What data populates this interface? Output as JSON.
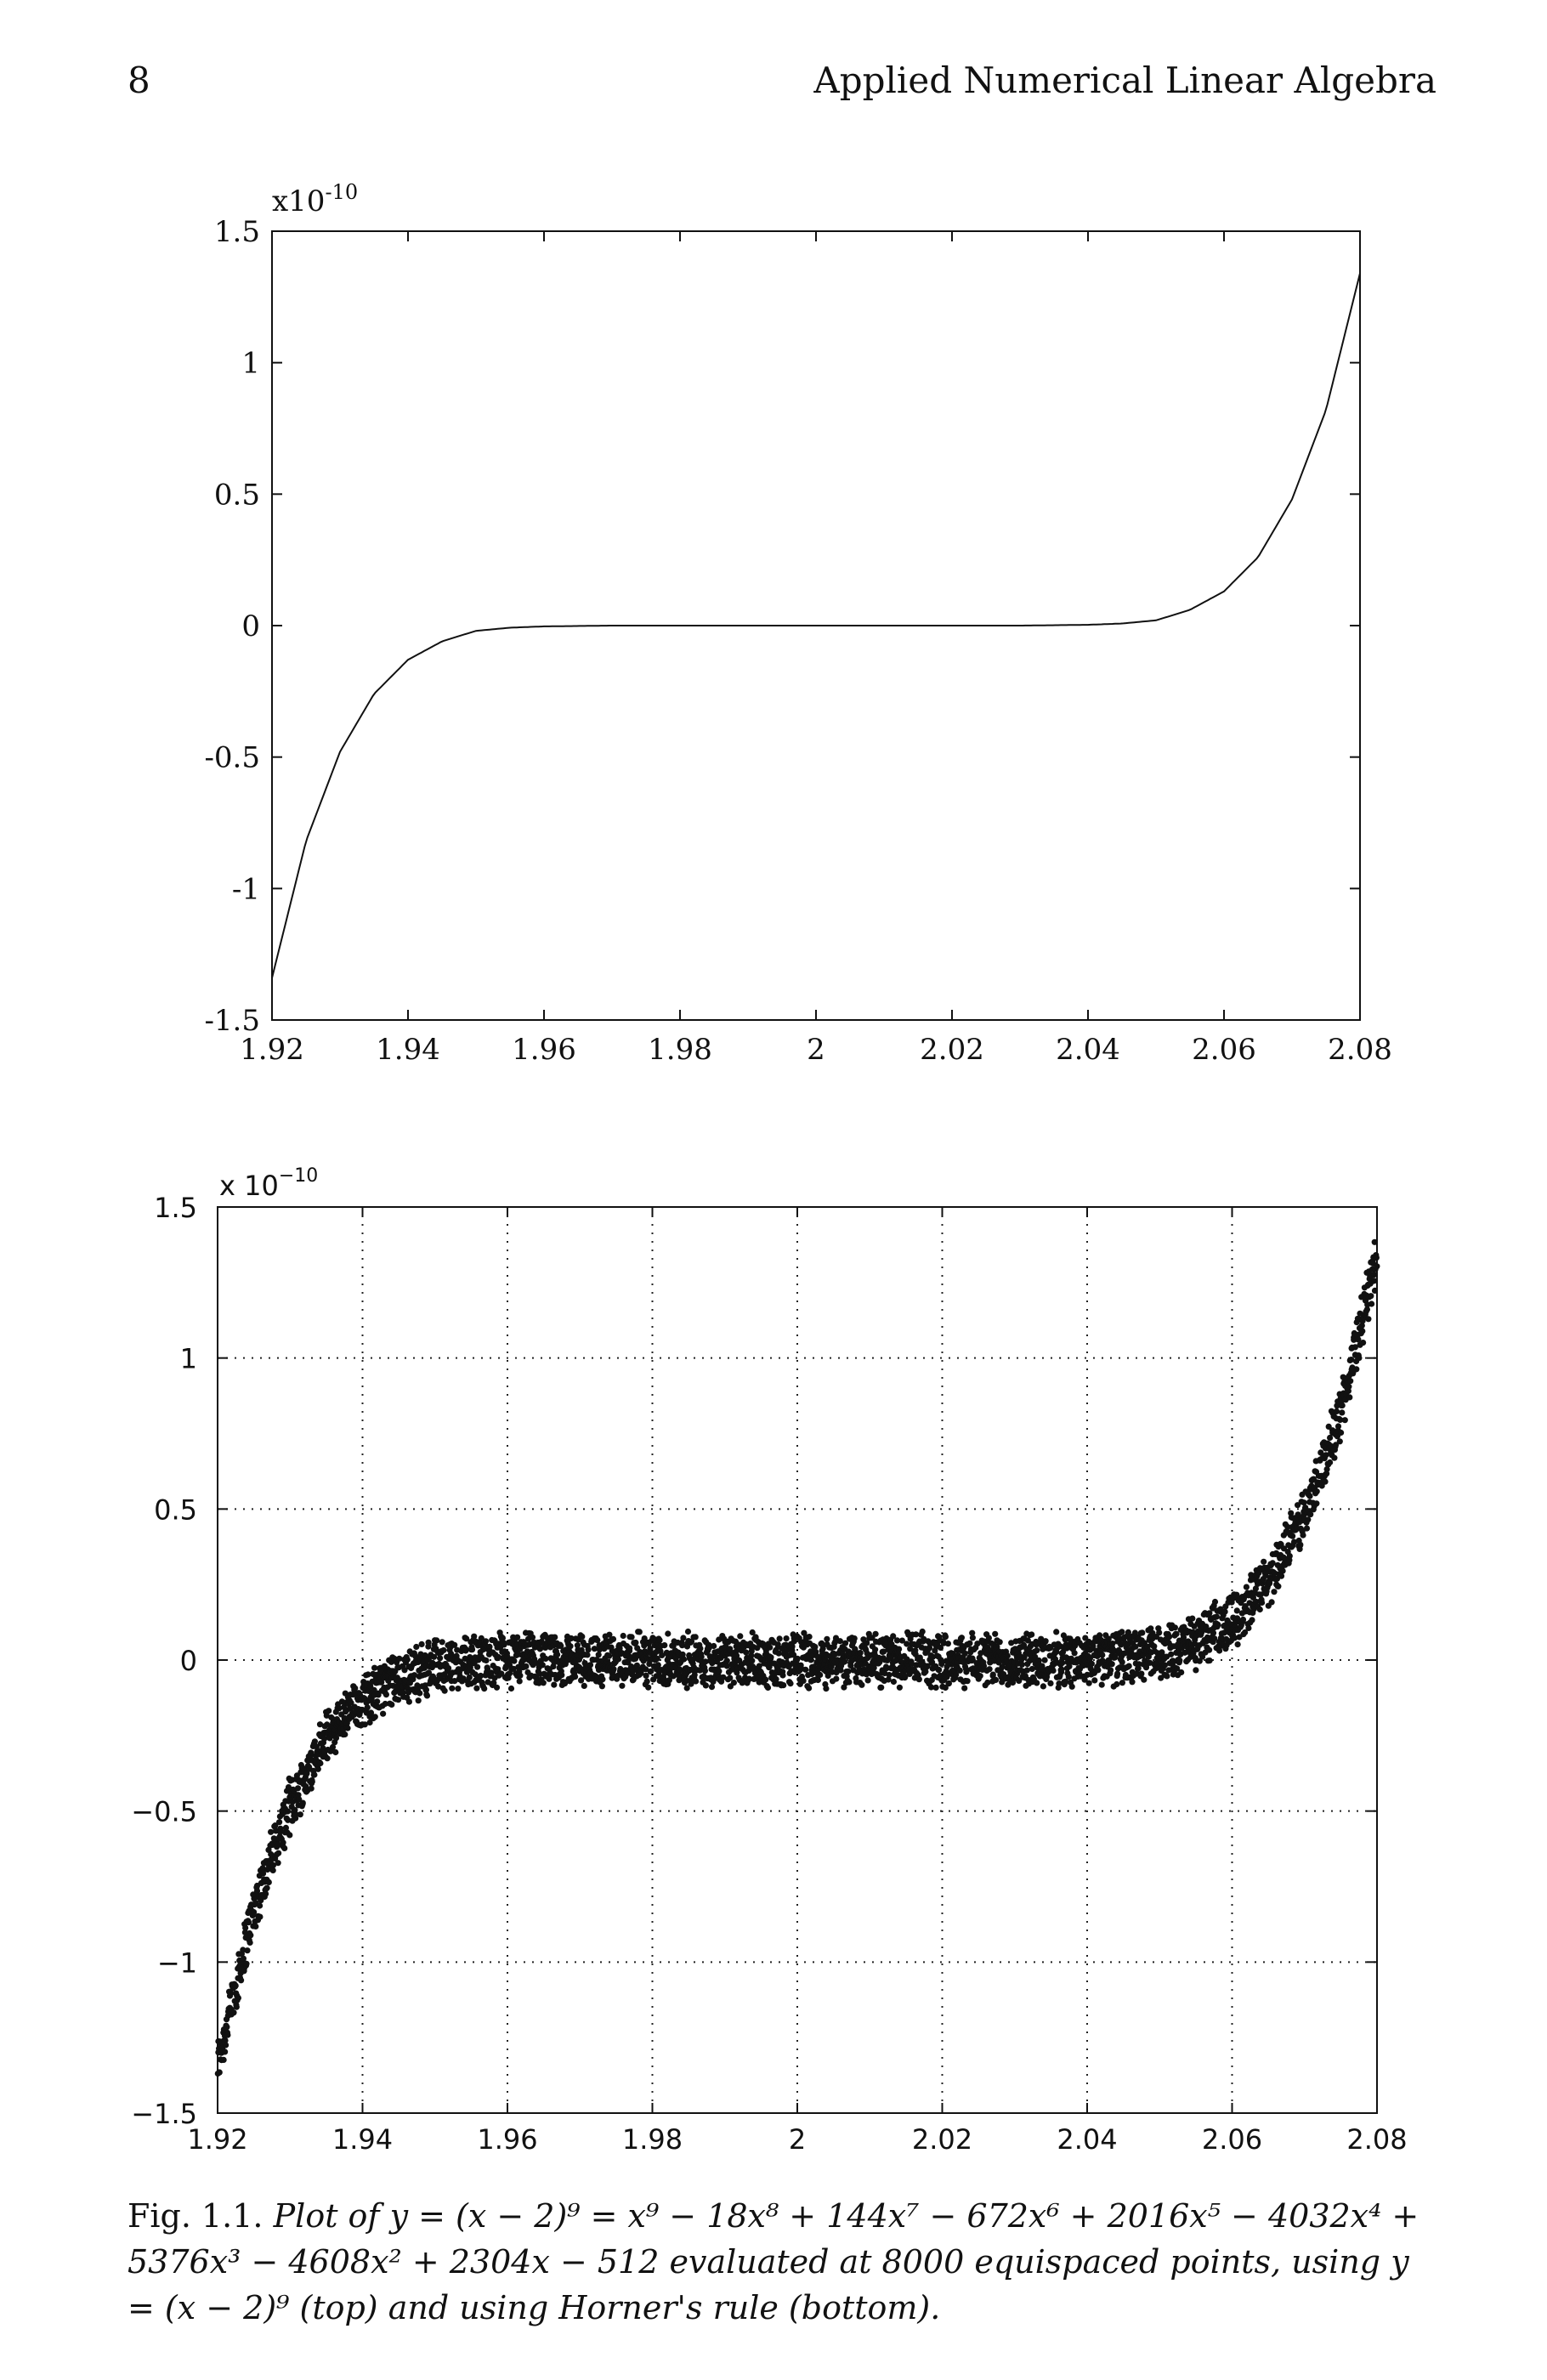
{
  "header": {
    "page_number": "8",
    "running_title": "Applied Numerical Linear Algebra"
  },
  "figure": {
    "caption_label": "Fig. 1.1.",
    "caption_text": "Plot of y = (x − 2)⁹ = x⁹ − 18x⁸ + 144x⁷ − 672x⁶ + 2016x⁵ − 4032x⁴ + 5376x³ − 4608x² + 2304x − 512 evaluated at 8000 equispaced points, using y = (x − 2)⁹ (top) and using Horner's rule (bottom)."
  },
  "chart_data": [
    {
      "type": "line",
      "title": "",
      "xlabel": "",
      "ylabel": "",
      "y_multiplier": "x10",
      "y_exponent": "-10",
      "function": "y = (x - 2)^9",
      "xlim": [
        1.92,
        2.08
      ],
      "ylim": [
        -1.5,
        1.5
      ],
      "xticks": [
        "1.92",
        "1.94",
        "1.96",
        "1.98",
        "2",
        "2.02",
        "2.04",
        "2.06",
        "2.08"
      ],
      "yticks": [
        "1.5",
        "1",
        "0.5",
        "0",
        "-0.5",
        "-1",
        "-1.5"
      ],
      "grid": false,
      "series": [
        {
          "x": [
            1.92,
            1.925,
            1.93,
            1.935,
            1.94,
            1.945,
            1.95,
            1.955,
            1.96,
            1.97,
            1.98,
            1.99,
            2.0,
            2.01,
            2.02,
            2.03,
            2.04,
            2.045,
            2.05,
            2.055,
            2.06,
            2.065,
            2.07,
            2.075,
            2.08
          ],
          "y": [
            -1.34,
            -0.82,
            -0.48,
            -0.26,
            -0.13,
            -0.06,
            -0.02,
            -0.008,
            -0.003,
            0.0,
            0.0,
            0.0,
            0.0,
            0.0,
            0.0,
            0.0,
            0.003,
            0.008,
            0.02,
            0.06,
            0.13,
            0.26,
            0.48,
            0.82,
            1.34
          ]
        }
      ]
    },
    {
      "type": "scatter",
      "title": "",
      "xlabel": "",
      "ylabel": "",
      "y_multiplier": "x 10",
      "y_exponent": "−10",
      "method": "Horner's rule",
      "n_points": 8000,
      "xlim": [
        1.92,
        2.08
      ],
      "ylim": [
        -1.5,
        1.5
      ],
      "xticks": [
        "1.92",
        "1.94",
        "1.96",
        "1.98",
        "2",
        "2.02",
        "2.04",
        "2.06",
        "2.08"
      ],
      "yticks": [
        "1.5",
        "1",
        "0.5",
        "0",
        "−0.5",
        "−1",
        "−1.5"
      ],
      "grid": true,
      "noise_amplitude": 0.1,
      "series": [
        {
          "x": [
            1.92,
            1.925,
            1.93,
            1.935,
            1.94,
            1.945,
            1.95,
            1.96,
            1.98,
            2.0,
            2.02,
            2.04,
            2.05,
            2.055,
            2.06,
            2.065,
            2.07,
            2.075,
            2.08
          ],
          "y": [
            -1.34,
            -0.82,
            -0.48,
            -0.26,
            -0.13,
            -0.06,
            -0.02,
            0.0,
            0.0,
            0.0,
            0.0,
            0.0,
            0.02,
            0.06,
            0.13,
            0.26,
            0.48,
            0.82,
            1.34
          ]
        }
      ]
    }
  ]
}
